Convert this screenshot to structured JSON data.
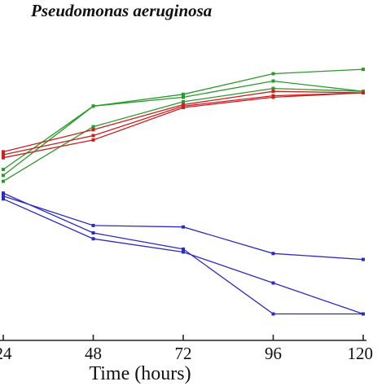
{
  "chart_data": {
    "type": "line",
    "title": "Pseudomonas aeruginosa",
    "xlabel": "Time (hours)",
    "ylabel": "",
    "x": [
      24,
      48,
      72,
      96,
      120
    ],
    "x_tick_labels": [
      "24",
      "48",
      "72",
      "96",
      "120"
    ],
    "xlim": [
      24,
      120
    ],
    "ylim": [
      0,
      100
    ],
    "grid": false,
    "legend": "none",
    "series": [
      {
        "color": "#2a9a2a",
        "values": [
          53.0,
          74.5,
          78.5,
          85.5,
          87.0
        ]
      },
      {
        "color": "#2a9a2a",
        "values": [
          51.0,
          74.5,
          77.5,
          83.0,
          79.5
        ]
      },
      {
        "color": "#2a9a2a",
        "values": [
          49.0,
          67.5,
          76.0,
          80.5,
          79.5
        ]
      },
      {
        "color": "#cc2020",
        "values": [
          59.0,
          66.5,
          75.0,
          79.5,
          79.0
        ]
      },
      {
        "color": "#cc2020",
        "values": [
          58.0,
          64.5,
          74.5,
          78.0,
          79.0
        ]
      },
      {
        "color": "#cc2020",
        "values": [
          57.0,
          63.0,
          74.0,
          77.5,
          79.0
        ]
      },
      {
        "color": "#2b2bc0",
        "values": [
          44.0,
          34.0,
          33.5,
          24.5,
          22.5
        ]
      },
      {
        "color": "#2b2bc0",
        "values": [
          43.0,
          29.5,
          25.0,
          14.5,
          4.0
        ]
      },
      {
        "color": "#2b2bc0",
        "values": [
          45.0,
          31.5,
          26.0,
          4.0,
          4.0
        ]
      }
    ]
  }
}
